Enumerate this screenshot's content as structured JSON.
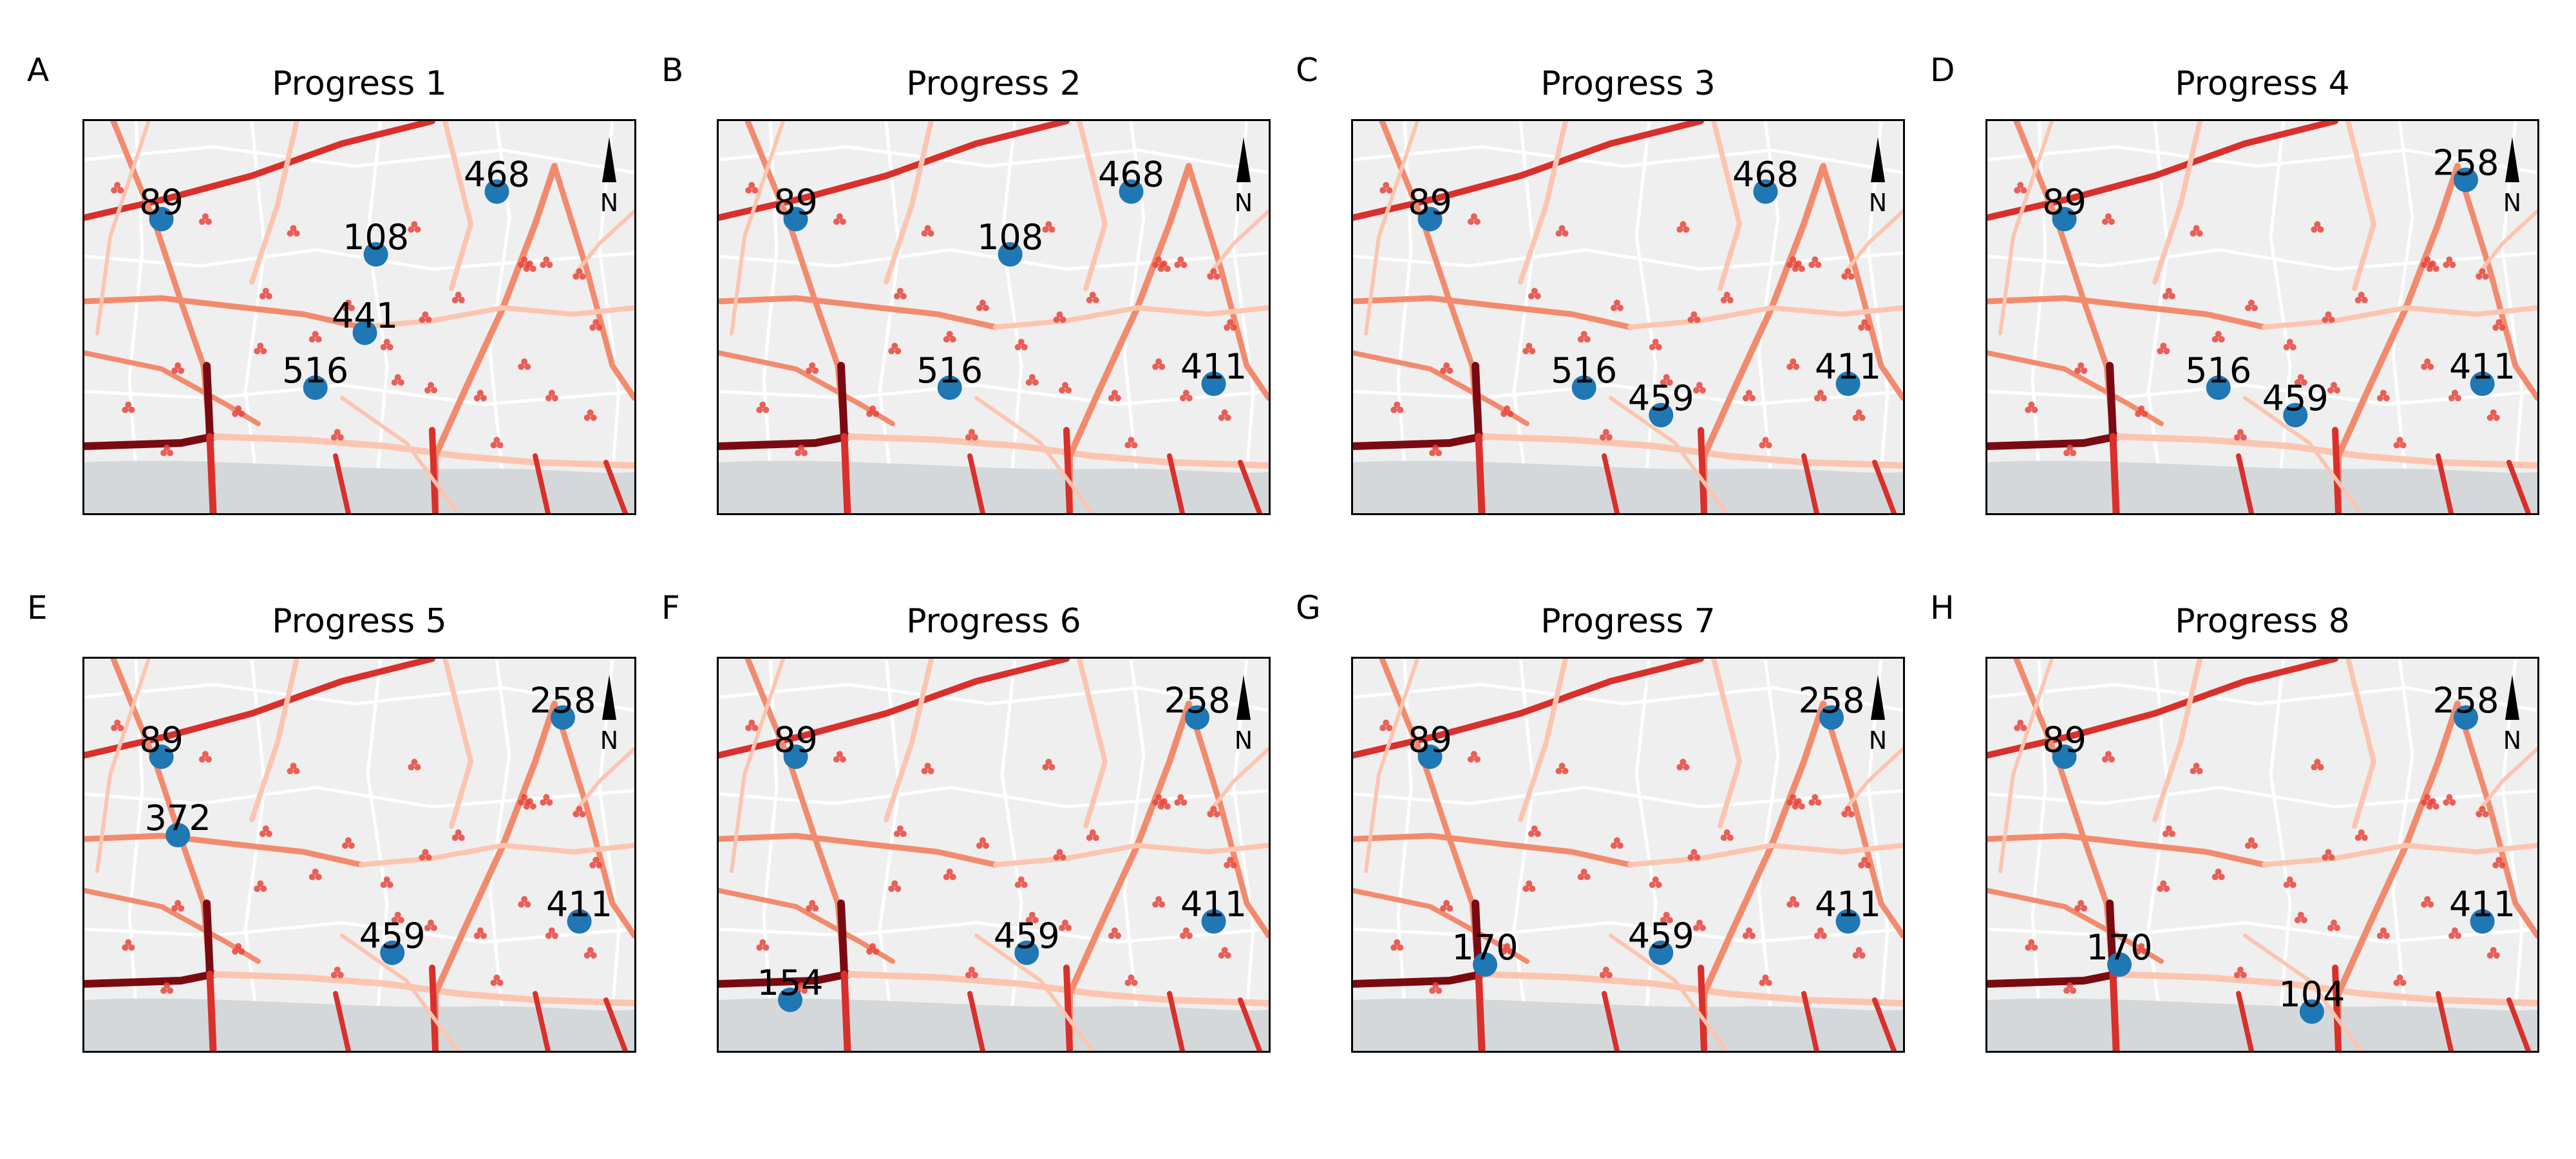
{
  "figure": {
    "panels": [
      {
        "letter": "A",
        "title": "Progress 1",
        "markers": [
          {
            "label": "468",
            "map_x": 0.75,
            "map_y": 0.18
          },
          {
            "label": "89",
            "map_x": 0.14,
            "map_y": 0.25
          },
          {
            "label": "108",
            "map_x": 0.53,
            "map_y": 0.34
          },
          {
            "label": "441",
            "map_x": 0.51,
            "map_y": 0.54
          },
          {
            "label": "516",
            "map_x": 0.42,
            "map_y": 0.68
          }
        ]
      },
      {
        "letter": "B",
        "title": "Progress 2",
        "markers": [
          {
            "label": "468",
            "map_x": 0.75,
            "map_y": 0.18
          },
          {
            "label": "89",
            "map_x": 0.14,
            "map_y": 0.25
          },
          {
            "label": "108",
            "map_x": 0.53,
            "map_y": 0.34
          },
          {
            "label": "516",
            "map_x": 0.42,
            "map_y": 0.68
          },
          {
            "label": "411",
            "map_x": 0.9,
            "map_y": 0.67
          }
        ]
      },
      {
        "letter": "C",
        "title": "Progress 3",
        "markers": [
          {
            "label": "468",
            "map_x": 0.75,
            "map_y": 0.18
          },
          {
            "label": "89",
            "map_x": 0.14,
            "map_y": 0.25
          },
          {
            "label": "516",
            "map_x": 0.42,
            "map_y": 0.68
          },
          {
            "label": "459",
            "map_x": 0.56,
            "map_y": 0.75
          },
          {
            "label": "411",
            "map_x": 0.9,
            "map_y": 0.67
          }
        ]
      },
      {
        "letter": "D",
        "title": "Progress 4",
        "markers": [
          {
            "label": "258",
            "map_x": 0.87,
            "map_y": 0.15
          },
          {
            "label": "89",
            "map_x": 0.14,
            "map_y": 0.25
          },
          {
            "label": "516",
            "map_x": 0.42,
            "map_y": 0.68
          },
          {
            "label": "459",
            "map_x": 0.56,
            "map_y": 0.75
          },
          {
            "label": "411",
            "map_x": 0.9,
            "map_y": 0.67
          }
        ]
      },
      {
        "letter": "E",
        "title": "Progress 5",
        "markers": [
          {
            "label": "258",
            "map_x": 0.87,
            "map_y": 0.15
          },
          {
            "label": "89",
            "map_x": 0.14,
            "map_y": 0.25
          },
          {
            "label": "372",
            "map_x": 0.17,
            "map_y": 0.45
          },
          {
            "label": "459",
            "map_x": 0.56,
            "map_y": 0.75
          },
          {
            "label": "411",
            "map_x": 0.9,
            "map_y": 0.67
          }
        ]
      },
      {
        "letter": "F",
        "title": "Progress 6",
        "markers": [
          {
            "label": "258",
            "map_x": 0.87,
            "map_y": 0.15
          },
          {
            "label": "89",
            "map_x": 0.14,
            "map_y": 0.25
          },
          {
            "label": "459",
            "map_x": 0.56,
            "map_y": 0.75
          },
          {
            "label": "411",
            "map_x": 0.9,
            "map_y": 0.67
          },
          {
            "label": "154",
            "map_x": 0.13,
            "map_y": 0.87
          }
        ]
      },
      {
        "letter": "G",
        "title": "Progress 7",
        "markers": [
          {
            "label": "258",
            "map_x": 0.87,
            "map_y": 0.15
          },
          {
            "label": "89",
            "map_x": 0.14,
            "map_y": 0.25
          },
          {
            "label": "459",
            "map_x": 0.56,
            "map_y": 0.75
          },
          {
            "label": "411",
            "map_x": 0.9,
            "map_y": 0.67
          },
          {
            "label": "170",
            "map_x": 0.24,
            "map_y": 0.78
          }
        ]
      },
      {
        "letter": "H",
        "title": "Progress 8",
        "markers": [
          {
            "label": "258",
            "map_x": 0.87,
            "map_y": 0.15
          },
          {
            "label": "89",
            "map_x": 0.14,
            "map_y": 0.25
          },
          {
            "label": "411",
            "map_x": 0.9,
            "map_y": 0.67
          },
          {
            "label": "170",
            "map_x": 0.24,
            "map_y": 0.78
          },
          {
            "label": "104",
            "map_x": 0.59,
            "map_y": 0.9
          }
        ]
      }
    ],
    "north_label": "N",
    "colors": {
      "marker": "#1f77b4",
      "map_background": "#efefef",
      "river": "#d4d8db",
      "incident": "#e8453c",
      "road_low": "#fcc5b0",
      "road_mid": "#f28b6e",
      "road_high": "#d9302b",
      "road_max": "#7a0a12"
    }
  }
}
